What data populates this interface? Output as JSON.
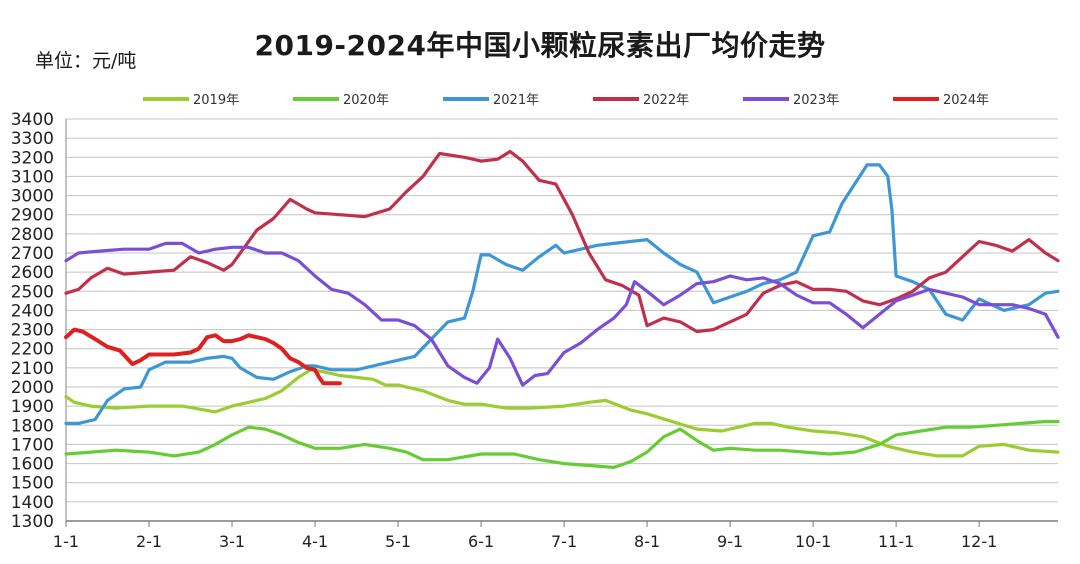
{
  "title": "2019-2024年中国小颗粒尿素出厂均价走势",
  "unit_label": "单位：元/吨",
  "chart_data": {
    "type": "line",
    "title": "2019-2024年中国小颗粒尿素出厂均价走势",
    "ylabel": "单位：元/吨",
    "ylim": [
      1300,
      3400
    ],
    "yticks": [
      1300,
      1400,
      1500,
      1600,
      1700,
      1800,
      1900,
      2000,
      2100,
      2200,
      2300,
      2400,
      2500,
      2600,
      2700,
      2800,
      2900,
      3000,
      3100,
      3200,
      3300,
      3400
    ],
    "xlim": [
      1,
      12.95
    ],
    "xticks": [
      1,
      2,
      3,
      4,
      5,
      6,
      7,
      8,
      9,
      10,
      11,
      12
    ],
    "xticklabels": [
      "1-1",
      "2-1",
      "3-1",
      "4-1",
      "5-1",
      "6-1",
      "7-1",
      "8-1",
      "9-1",
      "10-1",
      "11-1",
      "12-1"
    ],
    "grid": "horizontal",
    "legend_position": "top",
    "series": [
      {
        "name": "2019年",
        "color": "#9acd32",
        "x": [
          1,
          1.1,
          1.3,
          1.6,
          2,
          2.4,
          2.8,
          3.0,
          3.2,
          3.4,
          3.6,
          3.8,
          3.95,
          4.1,
          4.3,
          4.5,
          4.7,
          4.85,
          5.0,
          5.3,
          5.6,
          5.8,
          6.0,
          6.3,
          6.6,
          7.0,
          7.3,
          7.5,
          7.8,
          8.0,
          8.3,
          8.6,
          8.9,
          9.1,
          9.3,
          9.5,
          9.7,
          10.0,
          10.3,
          10.6,
          10.9,
          11.2,
          11.5,
          11.8,
          12.0,
          12.3,
          12.6,
          12.95
        ],
        "y": [
          1950,
          1920,
          1900,
          1890,
          1900,
          1900,
          1870,
          1900,
          1920,
          1940,
          1980,
          2050,
          2090,
          2080,
          2060,
          2050,
          2040,
          2010,
          2010,
          1980,
          1930,
          1910,
          1910,
          1890,
          1890,
          1900,
          1920,
          1930,
          1880,
          1860,
          1820,
          1780,
          1770,
          1790,
          1810,
          1810,
          1790,
          1770,
          1760,
          1740,
          1690,
          1660,
          1640,
          1640,
          1690,
          1700,
          1670,
          1660
        ]
      },
      {
        "name": "2020年",
        "color": "#66cc33",
        "x": [
          1,
          1.3,
          1.6,
          2.0,
          2.3,
          2.6,
          2.8,
          3.0,
          3.2,
          3.4,
          3.6,
          3.8,
          4.0,
          4.3,
          4.6,
          4.9,
          5.1,
          5.3,
          5.6,
          6.0,
          6.4,
          6.7,
          7.0,
          7.3,
          7.6,
          7.8,
          8.0,
          8.2,
          8.4,
          8.6,
          8.8,
          9.0,
          9.3,
          9.6,
          9.9,
          10.2,
          10.5,
          10.8,
          11.0,
          11.3,
          11.6,
          11.9,
          12.2,
          12.5,
          12.8,
          12.95
        ],
        "y": [
          1650,
          1660,
          1670,
          1660,
          1640,
          1660,
          1700,
          1750,
          1790,
          1780,
          1750,
          1710,
          1680,
          1680,
          1700,
          1680,
          1660,
          1620,
          1620,
          1650,
          1650,
          1620,
          1600,
          1590,
          1580,
          1610,
          1660,
          1740,
          1780,
          1720,
          1670,
          1680,
          1670,
          1670,
          1660,
          1650,
          1660,
          1700,
          1750,
          1770,
          1790,
          1790,
          1800,
          1810,
          1820,
          1820
        ]
      },
      {
        "name": "2021年",
        "color": "#3d96d6",
        "x": [
          1,
          1.15,
          1.35,
          1.5,
          1.7,
          1.9,
          2.0,
          2.2,
          2.5,
          2.7,
          2.9,
          3.0,
          3.1,
          3.3,
          3.5,
          3.7,
          3.9,
          4.0,
          4.2,
          4.5,
          4.8,
          5.0,
          5.2,
          5.4,
          5.6,
          5.8,
          5.9,
          6.0,
          6.1,
          6.3,
          6.5,
          6.7,
          6.9,
          7.0,
          7.2,
          7.4,
          7.6,
          7.8,
          8.0,
          8.2,
          8.4,
          8.6,
          8.8,
          9.0,
          9.2,
          9.4,
          9.6,
          9.8,
          10.0,
          10.2,
          10.35,
          10.5,
          10.65,
          10.8,
          10.9,
          10.95,
          11.0,
          11.2,
          11.4,
          11.6,
          11.8,
          12.0,
          12.3,
          12.6,
          12.8,
          12.95
        ],
        "y": [
          1810,
          1810,
          1830,
          1930,
          1990,
          2000,
          2090,
          2130,
          2130,
          2150,
          2160,
          2150,
          2100,
          2050,
          2040,
          2080,
          2110,
          2110,
          2090,
          2090,
          2120,
          2140,
          2160,
          2250,
          2340,
          2360,
          2500,
          2690,
          2690,
          2640,
          2610,
          2680,
          2740,
          2700,
          2720,
          2740,
          2750,
          2760,
          2770,
          2700,
          2640,
          2600,
          2440,
          2470,
          2500,
          2540,
          2560,
          2600,
          2790,
          2810,
          2960,
          3060,
          3160,
          3160,
          3100,
          2920,
          2580,
          2550,
          2510,
          2380,
          2350,
          2460,
          2400,
          2430,
          2490,
          2500
        ]
      },
      {
        "name": "2022年",
        "color": "#c0304a",
        "x": [
          1,
          1.15,
          1.3,
          1.5,
          1.7,
          2.0,
          2.3,
          2.5,
          2.7,
          2.9,
          3.0,
          3.1,
          3.3,
          3.5,
          3.7,
          3.9,
          4.0,
          4.3,
          4.6,
          4.9,
          5.1,
          5.3,
          5.5,
          5.8,
          6.0,
          6.2,
          6.35,
          6.5,
          6.7,
          6.9,
          7.1,
          7.3,
          7.5,
          7.7,
          7.9,
          8.0,
          8.2,
          8.4,
          8.6,
          8.8,
          9.0,
          9.2,
          9.4,
          9.6,
          9.8,
          10.0,
          10.2,
          10.4,
          10.6,
          10.8,
          11.0,
          11.2,
          11.4,
          11.6,
          11.8,
          12.0,
          12.2,
          12.4,
          12.6,
          12.8,
          12.95
        ],
        "y": [
          2490,
          2510,
          2570,
          2620,
          2590,
          2600,
          2610,
          2680,
          2650,
          2610,
          2640,
          2700,
          2820,
          2880,
          2980,
          2930,
          2910,
          2900,
          2890,
          2930,
          3020,
          3100,
          3220,
          3200,
          3180,
          3190,
          3230,
          3180,
          3080,
          3060,
          2900,
          2700,
          2560,
          2530,
          2480,
          2320,
          2360,
          2340,
          2290,
          2300,
          2340,
          2380,
          2490,
          2530,
          2550,
          2510,
          2510,
          2500,
          2450,
          2430,
          2460,
          2500,
          2570,
          2600,
          2680,
          2760,
          2740,
          2710,
          2770,
          2700,
          2660
        ]
      },
      {
        "name": "2023年",
        "color": "#7a4fd6",
        "x": [
          1,
          1.15,
          1.4,
          1.7,
          2.0,
          2.2,
          2.4,
          2.6,
          2.8,
          3.0,
          3.2,
          3.4,
          3.6,
          3.8,
          4.0,
          4.2,
          4.4,
          4.6,
          4.8,
          5.0,
          5.2,
          5.4,
          5.6,
          5.8,
          5.95,
          6.1,
          6.2,
          6.35,
          6.5,
          6.65,
          6.8,
          7.0,
          7.2,
          7.4,
          7.6,
          7.75,
          7.85,
          8.0,
          8.2,
          8.4,
          8.6,
          8.8,
          9.0,
          9.2,
          9.4,
          9.6,
          9.8,
          10.0,
          10.2,
          10.4,
          10.6,
          10.8,
          11.0,
          11.2,
          11.4,
          11.6,
          11.8,
          12.0,
          12.2,
          12.4,
          12.6,
          12.8,
          12.95
        ],
        "y": [
          2660,
          2700,
          2710,
          2720,
          2720,
          2750,
          2750,
          2700,
          2720,
          2730,
          2730,
          2700,
          2700,
          2660,
          2580,
          2510,
          2490,
          2430,
          2350,
          2350,
          2320,
          2250,
          2110,
          2050,
          2020,
          2100,
          2250,
          2150,
          2010,
          2060,
          2070,
          2180,
          2230,
          2300,
          2360,
          2430,
          2550,
          2500,
          2430,
          2480,
          2540,
          2550,
          2580,
          2560,
          2570,
          2540,
          2480,
          2440,
          2440,
          2380,
          2310,
          2380,
          2450,
          2480,
          2510,
          2490,
          2470,
          2430,
          2430,
          2430,
          2410,
          2380,
          2260
        ]
      },
      {
        "name": "2024年",
        "color": "#e02020",
        "x": [
          1,
          1.1,
          1.2,
          1.35,
          1.5,
          1.65,
          1.8,
          1.9,
          2.0,
          2.3,
          2.5,
          2.6,
          2.7,
          2.8,
          2.9,
          3.0,
          3.1,
          3.2,
          3.3,
          3.4,
          3.5,
          3.6,
          3.7,
          3.8,
          3.9,
          4.0,
          4.05,
          4.1,
          4.2,
          4.3
        ],
        "y": [
          2260,
          2300,
          2290,
          2250,
          2210,
          2190,
          2120,
          2140,
          2170,
          2170,
          2180,
          2200,
          2260,
          2270,
          2240,
          2240,
          2250,
          2270,
          2260,
          2250,
          2230,
          2200,
          2150,
          2130,
          2100,
          2090,
          2050,
          2020,
          2020,
          2020
        ]
      }
    ]
  }
}
